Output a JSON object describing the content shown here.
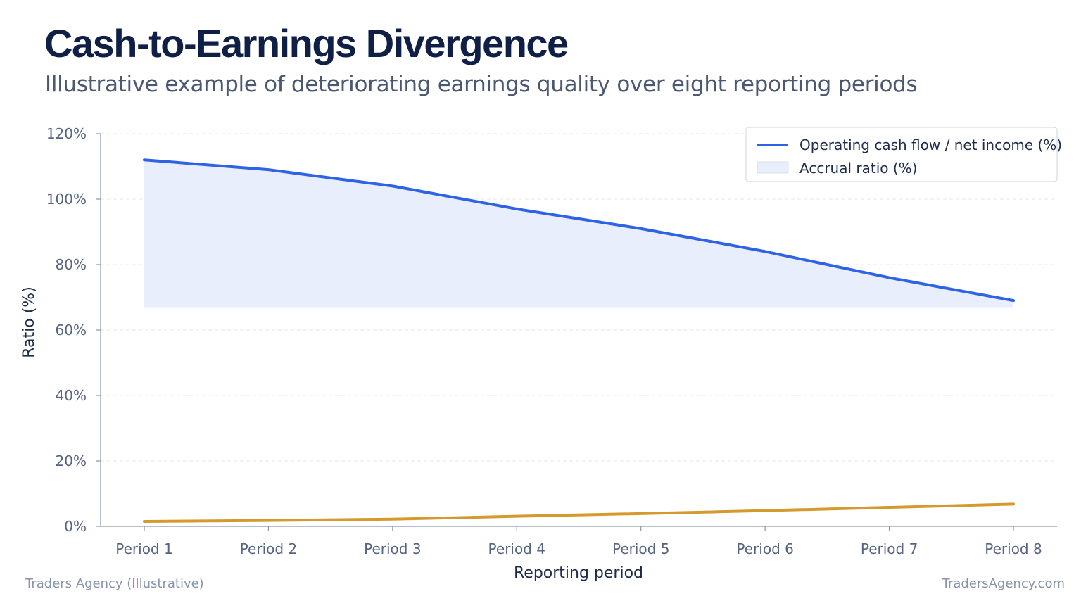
{
  "header": {
    "title": "Cash-to-Earnings Divergence",
    "subtitle": "Illustrative example of deteriorating earnings quality over eight reporting periods"
  },
  "footer": {
    "left": "Traders Agency (Illustrative)",
    "right": "TradersAgency.com"
  },
  "colors": {
    "cash_line": "#2f63e6",
    "accrual_fill": "#e8eefb",
    "accrual_line": "#d49a2e",
    "grid": "#e3e7ee",
    "axis": "#8a96ab"
  },
  "chart_data": {
    "type": "line",
    "xlabel": "Reporting period",
    "ylabel": "Ratio (%)",
    "categories": [
      "Period 1",
      "Period 2",
      "Period 3",
      "Period 4",
      "Period 5",
      "Period 6",
      "Period 7",
      "Period 8"
    ],
    "ylim": [
      0,
      120
    ],
    "yticks": [
      0,
      20,
      40,
      60,
      80,
      100,
      120
    ],
    "ytick_labels": [
      "0%",
      "20%",
      "40%",
      "60%",
      "80%",
      "100%",
      "120%"
    ],
    "grid": true,
    "legend_position": "top-right",
    "series": [
      {
        "name": "Operating cash flow / net income (%)",
        "values": [
          112,
          109,
          104,
          97,
          91,
          84,
          76,
          69
        ],
        "style": "line",
        "shaded_region_floor": 67
      },
      {
        "name": "Accrual ratio (%)",
        "values": [
          1.5,
          1.8,
          2.2,
          3.1,
          3.9,
          4.8,
          5.8,
          6.8
        ],
        "style": "line"
      }
    ]
  }
}
